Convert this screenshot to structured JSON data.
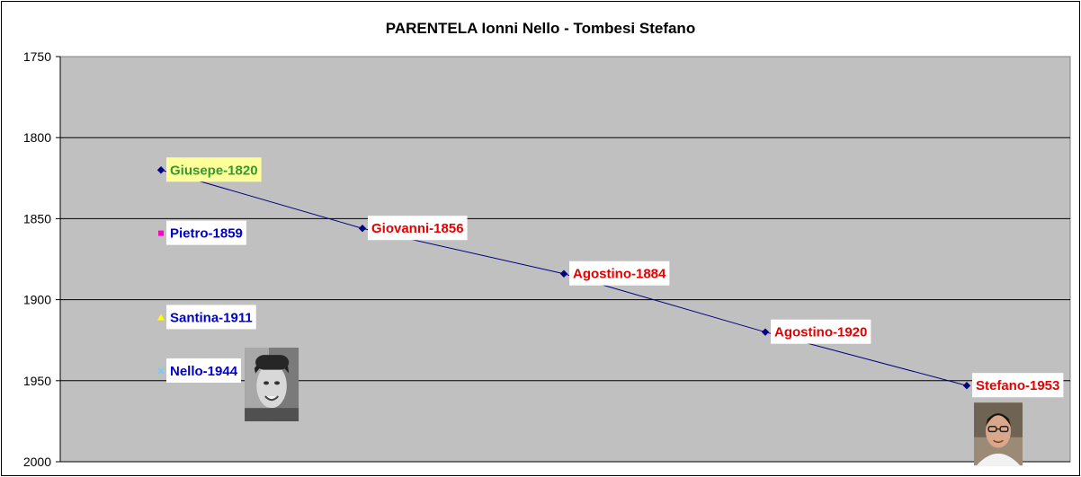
{
  "chart_data": {
    "type": "line",
    "title": "PARENTELA Ionni Nello - Tombesi Stefano",
    "xlabel": "",
    "ylabel": "",
    "ylim": [
      1750,
      2000
    ],
    "y_inverted": true,
    "y_ticks": [
      "1750",
      "1800",
      "1850",
      "1900",
      "1950",
      "2000"
    ],
    "grid": true,
    "legend": "none",
    "plot_background": "#c0c0c0",
    "series": [
      {
        "color": "#000080",
        "marker": "diamond",
        "connected": true,
        "points": [
          {
            "x": 1,
            "y": 1820,
            "label": "Giusepe-1820",
            "label_color": "#339933",
            "label_bg": "#ffff99"
          },
          {
            "x": 2,
            "y": 1856,
            "label": "Giovanni-1856",
            "label_color": "#e60000",
            "label_bg": "#ffffff"
          },
          {
            "x": 3,
            "y": 1884,
            "label": "Agostino-1884",
            "label_color": "#e60000",
            "label_bg": "#ffffff"
          },
          {
            "x": 4,
            "y": 1920,
            "label": "Agostino-1920",
            "label_color": "#e60000",
            "label_bg": "#ffffff"
          },
          {
            "x": 5,
            "y": 1953,
            "label": "Stefano-1953",
            "label_color": "#e60000",
            "label_bg": "#ffffff"
          }
        ]
      },
      {
        "color": "#ff00cc",
        "marker": "square",
        "connected": false,
        "points": [
          {
            "x": 1,
            "y": 1859,
            "label": "Pietro-1859",
            "label_color": "#0000cc",
            "label_bg": "#ffffff"
          }
        ]
      },
      {
        "color": "#ffff00",
        "marker": "triangle",
        "connected": false,
        "points": [
          {
            "x": 1,
            "y": 1911,
            "label": "Santina-1911",
            "label_color": "#0000cc",
            "label_bg": "#ffffff"
          }
        ]
      },
      {
        "color": "#66ccff",
        "marker": "x",
        "connected": false,
        "points": [
          {
            "x": 1,
            "y": 1944,
            "label": "Nello-1944",
            "label_color": "#0000cc",
            "label_bg": "#ffffff"
          }
        ]
      }
    ],
    "photos": [
      {
        "name": "nello-photo",
        "near_label": "Nello-1944"
      },
      {
        "name": "stefano-photo",
        "near_label": "Stefano-1953"
      }
    ]
  }
}
